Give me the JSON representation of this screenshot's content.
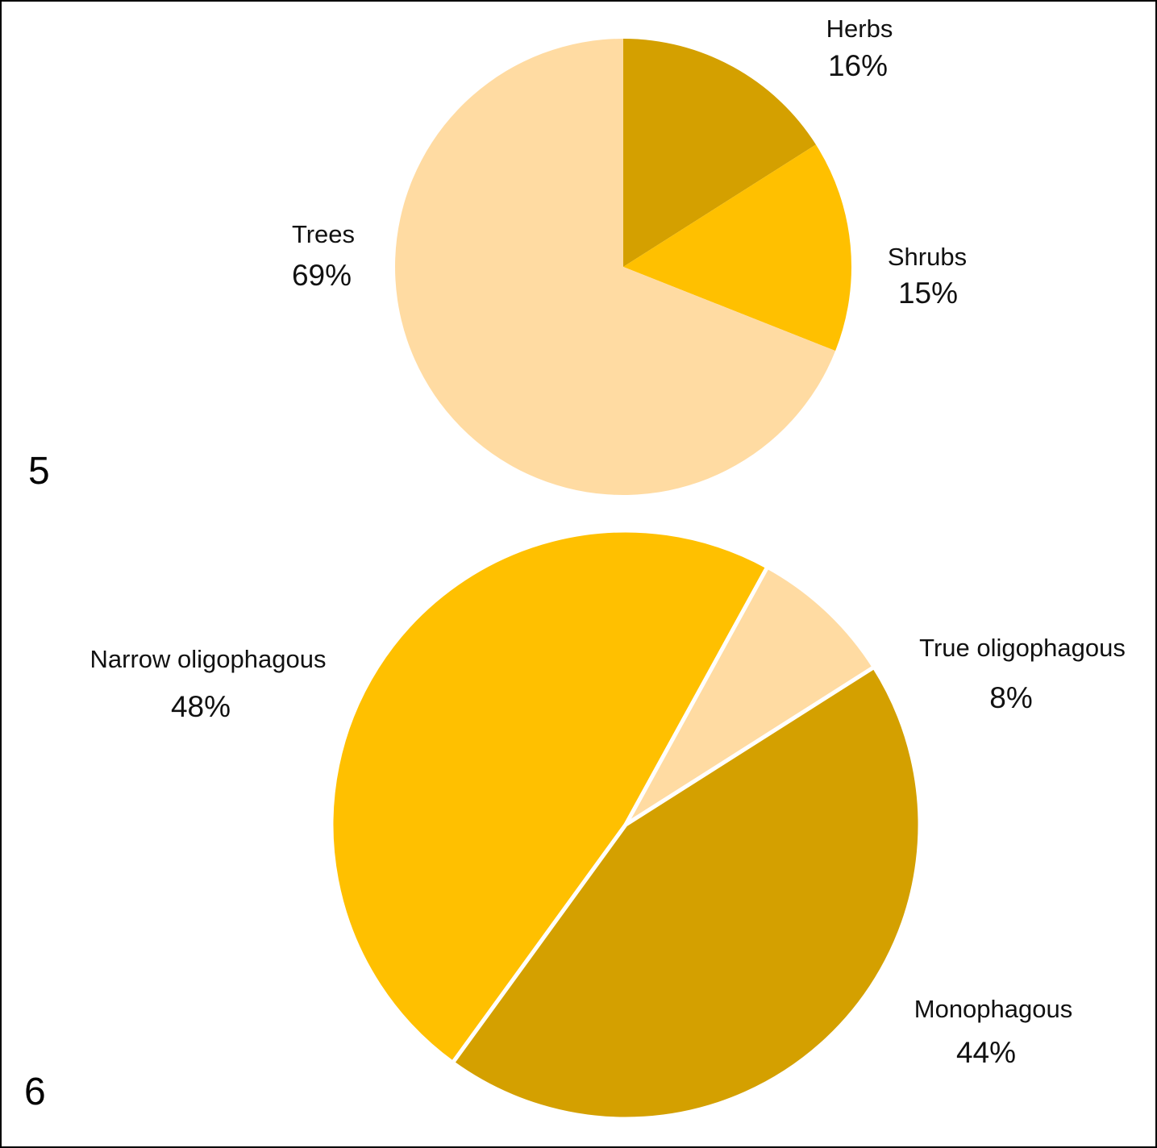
{
  "chart_data": [
    {
      "type": "pie",
      "panel_label": "5",
      "title": "",
      "start_angle_deg": 0,
      "slice_gap": false,
      "slices": [
        {
          "label": "Herbs",
          "value": 16,
          "value_label": "16%",
          "color": "#D4A000"
        },
        {
          "label": "Shrubs",
          "value": 15,
          "value_label": "15%",
          "color": "#FFC000"
        },
        {
          "label": "Trees",
          "value": 69,
          "value_label": "69%",
          "color": "#FFDBA2"
        }
      ]
    },
    {
      "type": "pie",
      "panel_label": "6",
      "title": "",
      "start_angle_deg": 216,
      "slice_gap": true,
      "slices": [
        {
          "label": "Narrow oligophagous",
          "value": 48,
          "value_label": "48%",
          "color": "#FFC000"
        },
        {
          "label": "True oligophagous",
          "value": 8,
          "value_label": "8%",
          "color": "#FFDBA2"
        },
        {
          "label": "Monophagous",
          "value": 44,
          "value_label": "44%",
          "color": "#D4A000"
        }
      ]
    }
  ]
}
